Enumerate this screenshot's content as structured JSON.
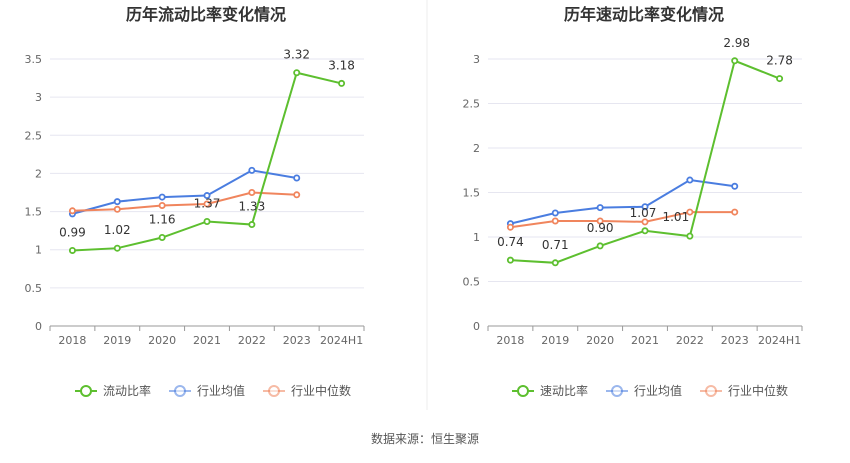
{
  "source_label": "数据来源：恒生聚源",
  "colors": {
    "company": "#5dbf2f",
    "industry_avg": "#4a7de0",
    "industry_median": "#f0855d",
    "grid": "#e6e6f0",
    "axis": "#999999"
  },
  "chart_data": [
    {
      "type": "line",
      "title": "历年流动比率变化情况",
      "categories": [
        "2018",
        "2019",
        "2020",
        "2021",
        "2022",
        "2023",
        "2024H1"
      ],
      "ylim": [
        0,
        3.5
      ],
      "yticks": [
        0,
        0.5,
        1,
        1.5,
        2,
        2.5,
        3,
        3.5
      ],
      "ytick_labels": [
        "0",
        "0.5",
        "1",
        "1.5",
        "2",
        "2.5",
        "3",
        "3.5"
      ],
      "grid": true,
      "legend_position": "bottom",
      "series": [
        {
          "name": "流动比率",
          "role": "company",
          "values": [
            0.99,
            1.02,
            1.16,
            1.37,
            1.33,
            3.32,
            3.18
          ],
          "labels": [
            "0.99",
            "1.02",
            "1.16",
            "1.37",
            "1.33",
            "3.32",
            "3.18"
          ]
        },
        {
          "name": "行业均值",
          "role": "industry_avg",
          "values": [
            1.47,
            1.63,
            1.69,
            1.71,
            2.04,
            1.94,
            null
          ]
        },
        {
          "name": "行业中位数",
          "role": "industry_median",
          "values": [
            1.51,
            1.53,
            1.58,
            1.6,
            1.75,
            1.72,
            null
          ]
        }
      ]
    },
    {
      "type": "line",
      "title": "历年速动比率变化情况",
      "categories": [
        "2018",
        "2019",
        "2020",
        "2021",
        "2022",
        "2023",
        "2024H1"
      ],
      "ylim": [
        0,
        3
      ],
      "yticks": [
        0,
        0.5,
        1,
        1.5,
        2,
        2.5,
        3
      ],
      "ytick_labels": [
        "0",
        "0.5",
        "1",
        "1.5",
        "2",
        "2.5",
        "3"
      ],
      "grid": true,
      "legend_position": "bottom",
      "series": [
        {
          "name": "速动比率",
          "role": "company",
          "values": [
            0.74,
            0.71,
            0.9,
            1.07,
            1.01,
            2.98,
            2.78
          ],
          "labels": [
            "0.74",
            "0.71",
            "0.90",
            "1.07",
            "1.01",
            "2.98",
            "2.78"
          ]
        },
        {
          "name": "行业均值",
          "role": "industry_avg",
          "values": [
            1.15,
            1.27,
            1.33,
            1.34,
            1.64,
            1.57,
            null
          ]
        },
        {
          "name": "行业中位数",
          "role": "industry_median",
          "values": [
            1.11,
            1.18,
            1.18,
            1.17,
            1.28,
            1.28,
            null
          ]
        }
      ]
    }
  ]
}
